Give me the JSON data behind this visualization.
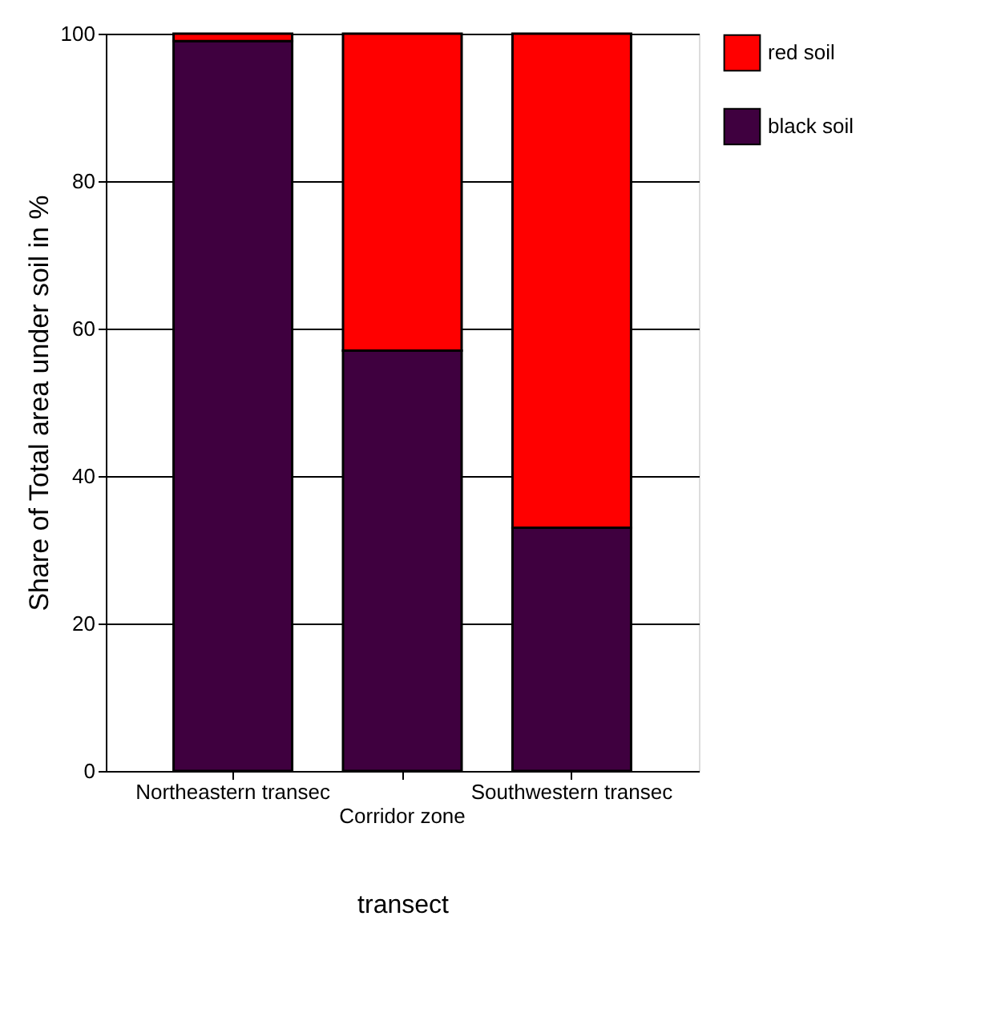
{
  "chart_data": {
    "type": "bar",
    "stacked": true,
    "xlabel": "transect",
    "ylabel": "Share of Total area under soil in %",
    "categories": [
      "Northeastern transec",
      "Corridor zone",
      "Southwestern transec"
    ],
    "series": [
      {
        "name": "black soil",
        "color": "#3f003f",
        "values": [
          99,
          57,
          33
        ]
      },
      {
        "name": "red soil",
        "color": "#ff0000",
        "values": [
          1,
          43,
          67
        ]
      }
    ],
    "ylim": [
      0,
      100
    ],
    "yticks": [
      0,
      20,
      40,
      60,
      80,
      100
    ],
    "grid": "y",
    "legend": "right"
  }
}
